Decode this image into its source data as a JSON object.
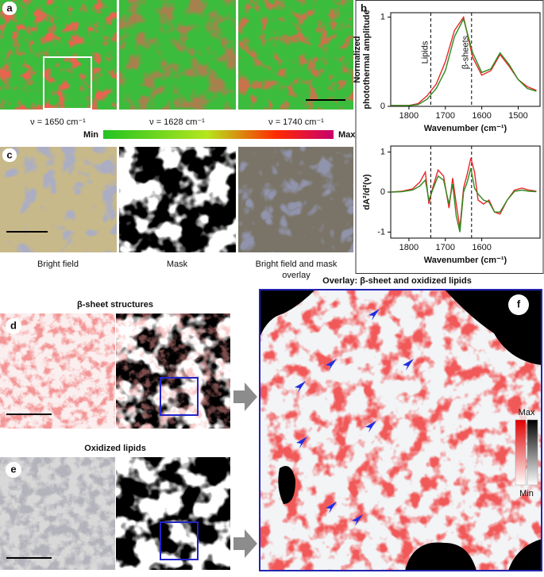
{
  "panels": {
    "a": {
      "label": "a",
      "captions": [
        "ν = 1650 cm⁻¹",
        "ν = 1628 cm⁻¹",
        "ν = 1740 cm⁻¹"
      ],
      "colorbar": {
        "min": "Min",
        "max": "Max"
      }
    },
    "b": {
      "label": "b"
    },
    "c": {
      "label": "c",
      "captions": [
        [
          "Bright field"
        ],
        [
          "Mask"
        ],
        [
          "Bright field and mask",
          "overlay"
        ]
      ]
    },
    "d": {
      "label": "d",
      "title": "β-sheet  structures"
    },
    "e": {
      "label": "e",
      "title": "Oxidized lipids"
    },
    "f": {
      "label": "f",
      "title": "Overlay: β-sheet and oxidized lipids",
      "colorbar": {
        "max": "Max",
        "min": "Min"
      }
    }
  },
  "chart_data": [
    {
      "type": "line",
      "ylabel": [
        "Normalized",
        "photothermal amplitude"
      ],
      "xlabel": "Wavenumber (cm⁻¹)",
      "x": [
        1850,
        1825,
        1800,
        1775,
        1750,
        1725,
        1700,
        1675,
        1650,
        1625,
        1600,
        1575,
        1550,
        1525,
        1500,
        1475,
        1450
      ],
      "series": [
        {
          "color": "#e8262a",
          "values": [
            0.01,
            0.01,
            0.01,
            0.03,
            0.12,
            0.25,
            0.5,
            0.85,
            1.0,
            0.55,
            0.35,
            0.4,
            0.58,
            0.45,
            0.3,
            0.22,
            0.18
          ]
        },
        {
          "color": "#2e8b1e",
          "values": [
            0.01,
            0.01,
            0.01,
            0.02,
            0.08,
            0.2,
            0.4,
            0.78,
            0.98,
            0.6,
            0.38,
            0.42,
            0.6,
            0.47,
            0.3,
            0.2,
            0.17
          ]
        }
      ],
      "xlim": [
        1850,
        1440
      ],
      "ylim": [
        0,
        1.05
      ],
      "xticks": [
        1800,
        1700,
        1600,
        1500
      ],
      "yticks": [
        0,
        1
      ],
      "vlines": [
        {
          "x": 1740,
          "label": "Lipids"
        },
        {
          "x": 1628,
          "label": "β-sheets"
        }
      ]
    },
    {
      "type": "line",
      "ylabel": [
        "dA²/d²(ν)"
      ],
      "xlabel": "Wavenumber (cm⁻¹)",
      "x": [
        1850,
        1820,
        1790,
        1770,
        1755,
        1745,
        1735,
        1720,
        1705,
        1690,
        1680,
        1670,
        1660,
        1650,
        1640,
        1630,
        1620,
        1610,
        1595,
        1580,
        1565,
        1550,
        1530,
        1510,
        1490,
        1470,
        1450
      ],
      "series": [
        {
          "color": "#e8262a",
          "values": [
            0,
            0.02,
            0.08,
            0.25,
            0.5,
            -0.3,
            0.1,
            0.55,
            0.4,
            -0.4,
            0.35,
            -0.3,
            -0.9,
            0.1,
            0.45,
            0.85,
            0.5,
            -0.2,
            -0.3,
            -0.2,
            -0.5,
            -0.55,
            -0.2,
            0.05,
            0.1,
            0.05,
            0.02
          ]
        },
        {
          "color": "#2e8b1e",
          "values": [
            0,
            0.01,
            0.05,
            0.15,
            0.3,
            -0.2,
            0.05,
            0.4,
            0.3,
            -0.3,
            0.2,
            -0.6,
            -1.0,
            0,
            0.25,
            0.6,
            0.1,
            -0.05,
            -0.2,
            -0.25,
            -0.5,
            -0.5,
            -0.2,
            0.02,
            0.05,
            0.02,
            0.01
          ]
        }
      ],
      "xlim": [
        1850,
        1440
      ],
      "ylim": [
        -1.15,
        1.15
      ],
      "xticks": [
        1800,
        1700,
        1600
      ],
      "yticks": [
        1,
        0,
        -1
      ],
      "vlines": [
        {
          "x": 1740
        },
        {
          "x": 1628
        }
      ]
    }
  ]
}
